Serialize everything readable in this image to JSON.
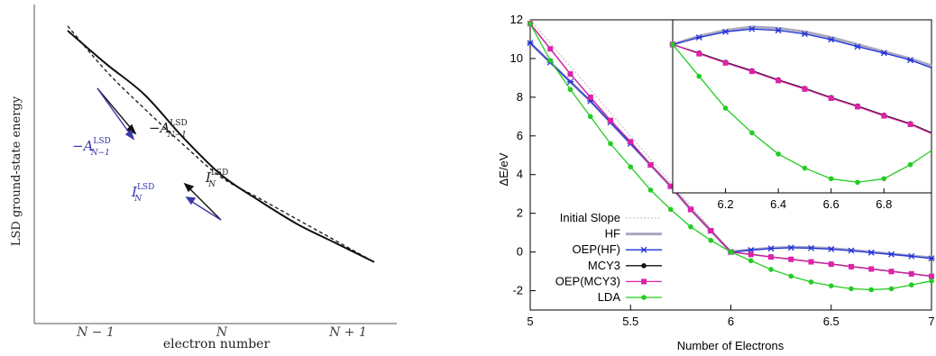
{
  "chart_data": [
    {
      "type": "line",
      "title": "",
      "ylabel": "LSD ground-state energy",
      "xlabel": "electron number",
      "x_ticks": [
        "N − 1",
        "N",
        "N + 1"
      ],
      "series": [
        {
          "style": "solid",
          "x": [
            0.0,
            0.5,
            1.0,
            1.5,
            2.0,
            2.5,
            3.0,
            3.5,
            4.0
          ],
          "y": [
            1.0,
            0.86,
            0.73,
            0.55,
            0.39,
            0.28,
            0.18,
            0.1,
            0.02
          ]
        },
        {
          "style": "dashed",
          "x": [
            0.0,
            0.5,
            1.0,
            1.5,
            2.0,
            2.5,
            3.0,
            3.5,
            4.0
          ],
          "y": [
            1.02,
            0.83,
            0.67,
            0.52,
            0.38,
            0.29,
            0.2,
            0.11,
            0.02
          ]
        }
      ],
      "annotations": [
        {
          "text": "−A",
          "sub": "N−1",
          "sup": "LSD",
          "color": "#3333aa"
        },
        {
          "text": "−A",
          "sub": "N−1",
          "sup": "LSD",
          "color": "#222222"
        },
        {
          "text": "I",
          "sub": "N",
          "sup": "LSD",
          "color": "#3333aa"
        },
        {
          "text": "I",
          "sub": "N",
          "sup": "LSD",
          "color": "#222222"
        }
      ]
    },
    {
      "type": "line",
      "title": "",
      "xlabel": "Number of Electrons",
      "ylabel": "ΔE/eV",
      "xlim": [
        5,
        7
      ],
      "ylim": [
        -3,
        12
      ],
      "x_ticks": [
        "5",
        "5.5",
        "6",
        "6.5",
        "7"
      ],
      "y_ticks": [
        "-2",
        "0",
        "2",
        "4",
        "6",
        "8",
        "10",
        "12"
      ],
      "legend": "left",
      "series": [
        {
          "name": "Initial Slope",
          "color": "#bbbbbb",
          "x": [
            5.0,
            6.0
          ],
          "y": [
            12.0,
            0.0
          ]
        },
        {
          "name": "HF",
          "color": "#a8a8c0",
          "x": [
            5.0,
            5.1,
            5.2,
            5.3,
            5.4,
            5.5,
            5.6,
            5.7,
            5.8,
            5.9,
            6.0,
            6.1,
            6.2,
            6.3,
            6.4,
            6.5,
            6.6,
            6.7,
            6.8,
            6.9,
            7.0
          ],
          "y": [
            10.8,
            9.8,
            8.8,
            7.8,
            6.7,
            5.6,
            4.5,
            3.4,
            2.2,
            1.1,
            0.0,
            0.12,
            0.2,
            0.25,
            0.23,
            0.18,
            0.1,
            0.0,
            -0.1,
            -0.2,
            -0.3
          ]
        },
        {
          "name": "OEP(HF)",
          "color": "#2233dd",
          "x": [
            5.0,
            5.1,
            5.2,
            5.3,
            5.4,
            5.5,
            5.6,
            5.7,
            5.8,
            5.9,
            6.0,
            6.1,
            6.2,
            6.3,
            6.4,
            6.5,
            6.6,
            6.7,
            6.8,
            6.9,
            7.0
          ],
          "y": [
            10.8,
            9.8,
            8.8,
            7.8,
            6.7,
            5.6,
            4.5,
            3.4,
            2.2,
            1.1,
            0.0,
            0.1,
            0.18,
            0.22,
            0.2,
            0.15,
            0.07,
            -0.03,
            -0.12,
            -0.22,
            -0.33
          ]
        },
        {
          "name": "MCY3",
          "color": "#111111",
          "x": [
            5.0,
            5.1,
            5.2,
            5.3,
            5.4,
            5.5,
            5.6,
            5.7,
            5.8,
            5.9,
            6.0,
            6.1,
            6.2,
            6.3,
            6.4,
            6.5,
            6.6,
            6.7,
            6.8,
            6.9,
            7.0
          ],
          "y": [
            11.8,
            10.5,
            9.2,
            8.0,
            6.8,
            5.7,
            4.5,
            3.4,
            2.2,
            1.1,
            0.0,
            -0.12,
            -0.25,
            -0.37,
            -0.5,
            -0.62,
            -0.75,
            -0.87,
            -1.0,
            -1.12,
            -1.25
          ]
        },
        {
          "name": "OEP(MCY3)",
          "color": "#dd22aa",
          "x": [
            5.0,
            5.1,
            5.2,
            5.3,
            5.4,
            5.5,
            5.6,
            5.7,
            5.8,
            5.9,
            6.0,
            6.1,
            6.2,
            6.3,
            6.4,
            6.5,
            6.6,
            6.7,
            6.8,
            6.9,
            7.0
          ],
          "y": [
            11.8,
            10.5,
            9.2,
            8.0,
            6.8,
            5.7,
            4.5,
            3.4,
            2.2,
            1.1,
            0.0,
            -0.13,
            -0.26,
            -0.38,
            -0.51,
            -0.63,
            -0.76,
            -0.88,
            -1.01,
            -1.13,
            -1.26
          ]
        },
        {
          "name": "LDA",
          "color": "#22cc22",
          "x": [
            5.0,
            5.1,
            5.2,
            5.3,
            5.4,
            5.5,
            5.6,
            5.7,
            5.8,
            5.9,
            6.0,
            6.1,
            6.2,
            6.3,
            6.4,
            6.5,
            6.6,
            6.7,
            6.8,
            6.9,
            7.0
          ],
          "y": [
            11.8,
            9.9,
            8.4,
            7.0,
            5.6,
            4.4,
            3.2,
            2.2,
            1.3,
            0.6,
            0.0,
            -0.45,
            -0.9,
            -1.25,
            -1.55,
            -1.75,
            -1.9,
            -1.95,
            -1.9,
            -1.7,
            -1.5
          ]
        }
      ],
      "inset": {
        "xlim": [
          6.0,
          6.98
        ],
        "x_ticks": [
          "6.2",
          "6.4",
          "6.6",
          "6.8"
        ],
        "note": "zoomed view of 6 ≤ N ≤ 7 (inset y axis unlabeled)"
      }
    }
  ]
}
